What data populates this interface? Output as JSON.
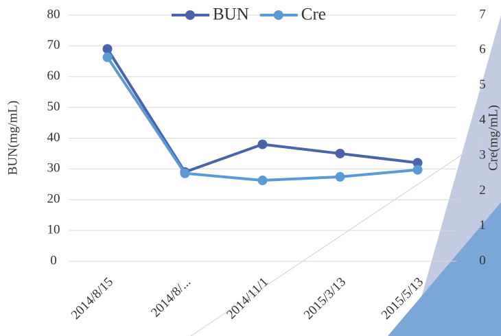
{
  "chart_data": {
    "type": "line",
    "categories": [
      "2014/8/15",
      "2014/8/...",
      "2014/11/1",
      "2015/3/13",
      "2015/5/13"
    ],
    "series": [
      {
        "name": "BUN",
        "color": "#4a63ab",
        "values": [
          69,
          29,
          38,
          35,
          32
        ]
      },
      {
        "name": "Cre",
        "color": "#5b9bd5",
        "values": [
          5.8,
          2.5,
          2.3,
          2.4,
          2.6
        ],
        "axis": "y2"
      }
    ],
    "ylabel": "BUN(mg/mL)",
    "y2label": "Cre(mg/mL)",
    "ylim": [
      0,
      80
    ],
    "yticks": [
      0,
      10,
      20,
      30,
      40,
      50,
      60,
      70,
      80
    ],
    "y2lim": [
      0,
      7
    ],
    "y2ticks": [
      0,
      1,
      2,
      3,
      4,
      5,
      6,
      7
    ],
    "grid": true,
    "legend": "top"
  }
}
